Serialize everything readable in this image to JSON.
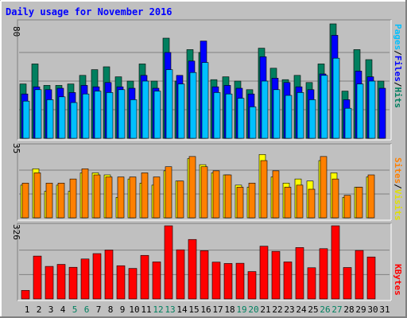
{
  "chart_data": [
    {
      "type": "bar",
      "title": "Daily usage for November 2016",
      "y_max_label": "80",
      "legend": [
        "Pages",
        "/",
        "Files",
        "/",
        "Hits"
      ],
      "categories": [
        "1",
        "2",
        "3",
        "4",
        "5",
        "6",
        "7",
        "8",
        "9",
        "10",
        "11",
        "12",
        "13",
        "14",
        "15",
        "16",
        "17",
        "18",
        "19",
        "20",
        "21",
        "22",
        "23",
        "24",
        "25",
        "26",
        "27",
        "28",
        "29",
        "30",
        "31"
      ],
      "ylim": [
        0,
        80
      ],
      "series": [
        {
          "name": "Hits",
          "values": [
            38,
            52,
            37,
            37,
            38,
            44,
            48,
            50,
            43,
            40,
            52,
            40,
            70,
            40,
            62,
            60,
            41,
            43,
            40,
            34,
            63,
            49,
            41,
            44,
            39,
            52,
            80,
            33,
            62,
            55,
            40
          ]
        },
        {
          "name": "Files",
          "values": [
            31,
            36,
            34,
            35,
            32,
            37,
            36,
            39,
            36,
            35,
            44,
            35,
            60,
            44,
            54,
            68,
            36,
            37,
            35,
            31,
            57,
            42,
            39,
            36,
            34,
            45,
            72,
            27,
            47,
            43,
            35
          ]
        },
        {
          "name": "Pages",
          "values": [
            26,
            34,
            27,
            29,
            25,
            31,
            33,
            32,
            34,
            27,
            40,
            33,
            48,
            38,
            46,
            53,
            32,
            31,
            28,
            22,
            40,
            34,
            30,
            32,
            27,
            44,
            56,
            21,
            38,
            40,
            0
          ]
        }
      ]
    },
    {
      "type": "bar",
      "y_max_label": "35",
      "legend": [
        "Sites",
        "/",
        "Visits"
      ],
      "categories": [
        "1",
        "2",
        "3",
        "4",
        "5",
        "6",
        "7",
        "8",
        "9",
        "10",
        "11",
        "12",
        "13",
        "14",
        "15",
        "16",
        "17",
        "18",
        "19",
        "20",
        "21",
        "22",
        "23",
        "24",
        "25",
        "26",
        "27",
        "28",
        "29",
        "30",
        "31"
      ],
      "ylim": [
        0,
        35
      ],
      "series": [
        {
          "name": "Visits",
          "values": [
            16,
            24,
            13,
            16,
            13,
            22,
            22,
            21,
            10,
            19,
            17,
            16,
            23,
            18,
            29,
            26,
            22,
            21,
            16,
            15,
            31,
            20,
            17,
            19,
            18,
            28,
            22,
            10,
            15,
            20,
            0
          ]
        },
        {
          "name": "Sites",
          "values": [
            17,
            22,
            17,
            17,
            19,
            24,
            21,
            20,
            20,
            20,
            22,
            20,
            25,
            18,
            30,
            25,
            23,
            21,
            15,
            17,
            28,
            23,
            15,
            16,
            14,
            30,
            19,
            11,
            15,
            21,
            0
          ]
        }
      ]
    },
    {
      "type": "bar",
      "y_max_label": "326",
      "legend": [
        "KBytes"
      ],
      "categories": [
        "1",
        "2",
        "3",
        "4",
        "5",
        "6",
        "7",
        "8",
        "9",
        "10",
        "11",
        "12",
        "13",
        "14",
        "15",
        "16",
        "17",
        "18",
        "19",
        "20",
        "21",
        "22",
        "23",
        "24",
        "25",
        "26",
        "27",
        "28",
        "29",
        "30",
        "31"
      ],
      "ylim": [
        0,
        326
      ],
      "series": [
        {
          "name": "KBytes",
          "values": [
            38,
            191,
            145,
            154,
            141,
            178,
            202,
            218,
            148,
            136,
            194,
            165,
            326,
            219,
            265,
            215,
            164,
            158,
            159,
            122,
            235,
            212,
            165,
            229,
            139,
            224,
            326,
            140,
            216,
            187,
            0
          ]
        }
      ]
    }
  ],
  "colors": {
    "hits": "#007F5F",
    "files": "#0000FF",
    "pages": "#00C0FF",
    "visits": "#FFFF00",
    "sites": "#FF8000",
    "kbytes": "#FF0000",
    "title": "#0000FF",
    "panel": "#C0C0C0"
  },
  "weekend_days": [
    5,
    6,
    12,
    13,
    19,
    20,
    26,
    27
  ]
}
